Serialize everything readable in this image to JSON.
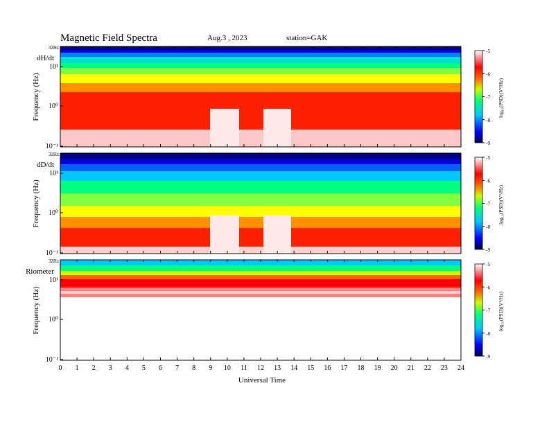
{
  "header": {
    "title": "Magnetic  Field  Spectra",
    "date": "Aug.3  , 2023",
    "station": "station=GAK"
  },
  "chart_data": [
    {
      "type": "heatmap",
      "panel_label": "dH/dt",
      "ylabel": "Frequency  (Hz)",
      "xlabel": "Universal  Time",
      "top_freq_label": "32Hz",
      "yticks": [
        "10¹",
        "10⁰",
        "10⁻¹"
      ],
      "xlim": [
        0,
        24
      ],
      "xticks": [
        "0",
        "1",
        "2",
        "3",
        "4",
        "5",
        "6",
        "7",
        "8",
        "9",
        "10",
        "11",
        "12",
        "13",
        "14",
        "15",
        "16",
        "17",
        "18",
        "19",
        "20",
        "21",
        "22",
        "23",
        "24"
      ],
      "colorbar": {
        "label": "log₁₀(PSD)(V²/Hz)",
        "ticks": [
          "-5",
          "-6",
          "-7",
          "-8",
          "-9"
        ],
        "range": [
          -9,
          -5
        ]
      }
    },
    {
      "type": "heatmap",
      "panel_label": "dD/dt",
      "ylabel": "Frequency  (Hz)",
      "xlabel": "Universal  Time",
      "top_freq_label": "32Hz",
      "yticks": [
        "10¹",
        "10⁰",
        "10⁻¹"
      ],
      "xlim": [
        0,
        24
      ],
      "xticks": [
        "0",
        "1",
        "2",
        "3",
        "4",
        "5",
        "6",
        "7",
        "8",
        "9",
        "10",
        "11",
        "12",
        "13",
        "14",
        "15",
        "16",
        "17",
        "18",
        "19",
        "20",
        "21",
        "22",
        "23",
        "24"
      ],
      "colorbar": {
        "label": "log₁₀(PSD)(V²/Hz)",
        "ticks": [
          "-5",
          "-6",
          "-7",
          "-8",
          "-9"
        ],
        "range": [
          -9,
          -5
        ]
      }
    },
    {
      "type": "heatmap",
      "panel_label": "Riometer",
      "ylabel": "Frequency  (Hz)",
      "xlabel": "Universal  Time",
      "top_freq_label": "32Hz",
      "yticks": [
        "10¹",
        "10⁰",
        "10⁻¹"
      ],
      "xlim": [
        0,
        24
      ],
      "xticks": [
        "0",
        "1",
        "2",
        "3",
        "4",
        "5",
        "6",
        "7",
        "8",
        "9",
        "10",
        "11",
        "12",
        "13",
        "14",
        "15",
        "16",
        "17",
        "18",
        "19",
        "20",
        "21",
        "22",
        "23",
        "24"
      ],
      "colorbar": {
        "label": "log₁₀(PSD)(V²/Hz)",
        "ticks": [
          "-5",
          "-6",
          "-7",
          "-8",
          "-9"
        ],
        "range": [
          -9,
          -5
        ]
      }
    }
  ]
}
